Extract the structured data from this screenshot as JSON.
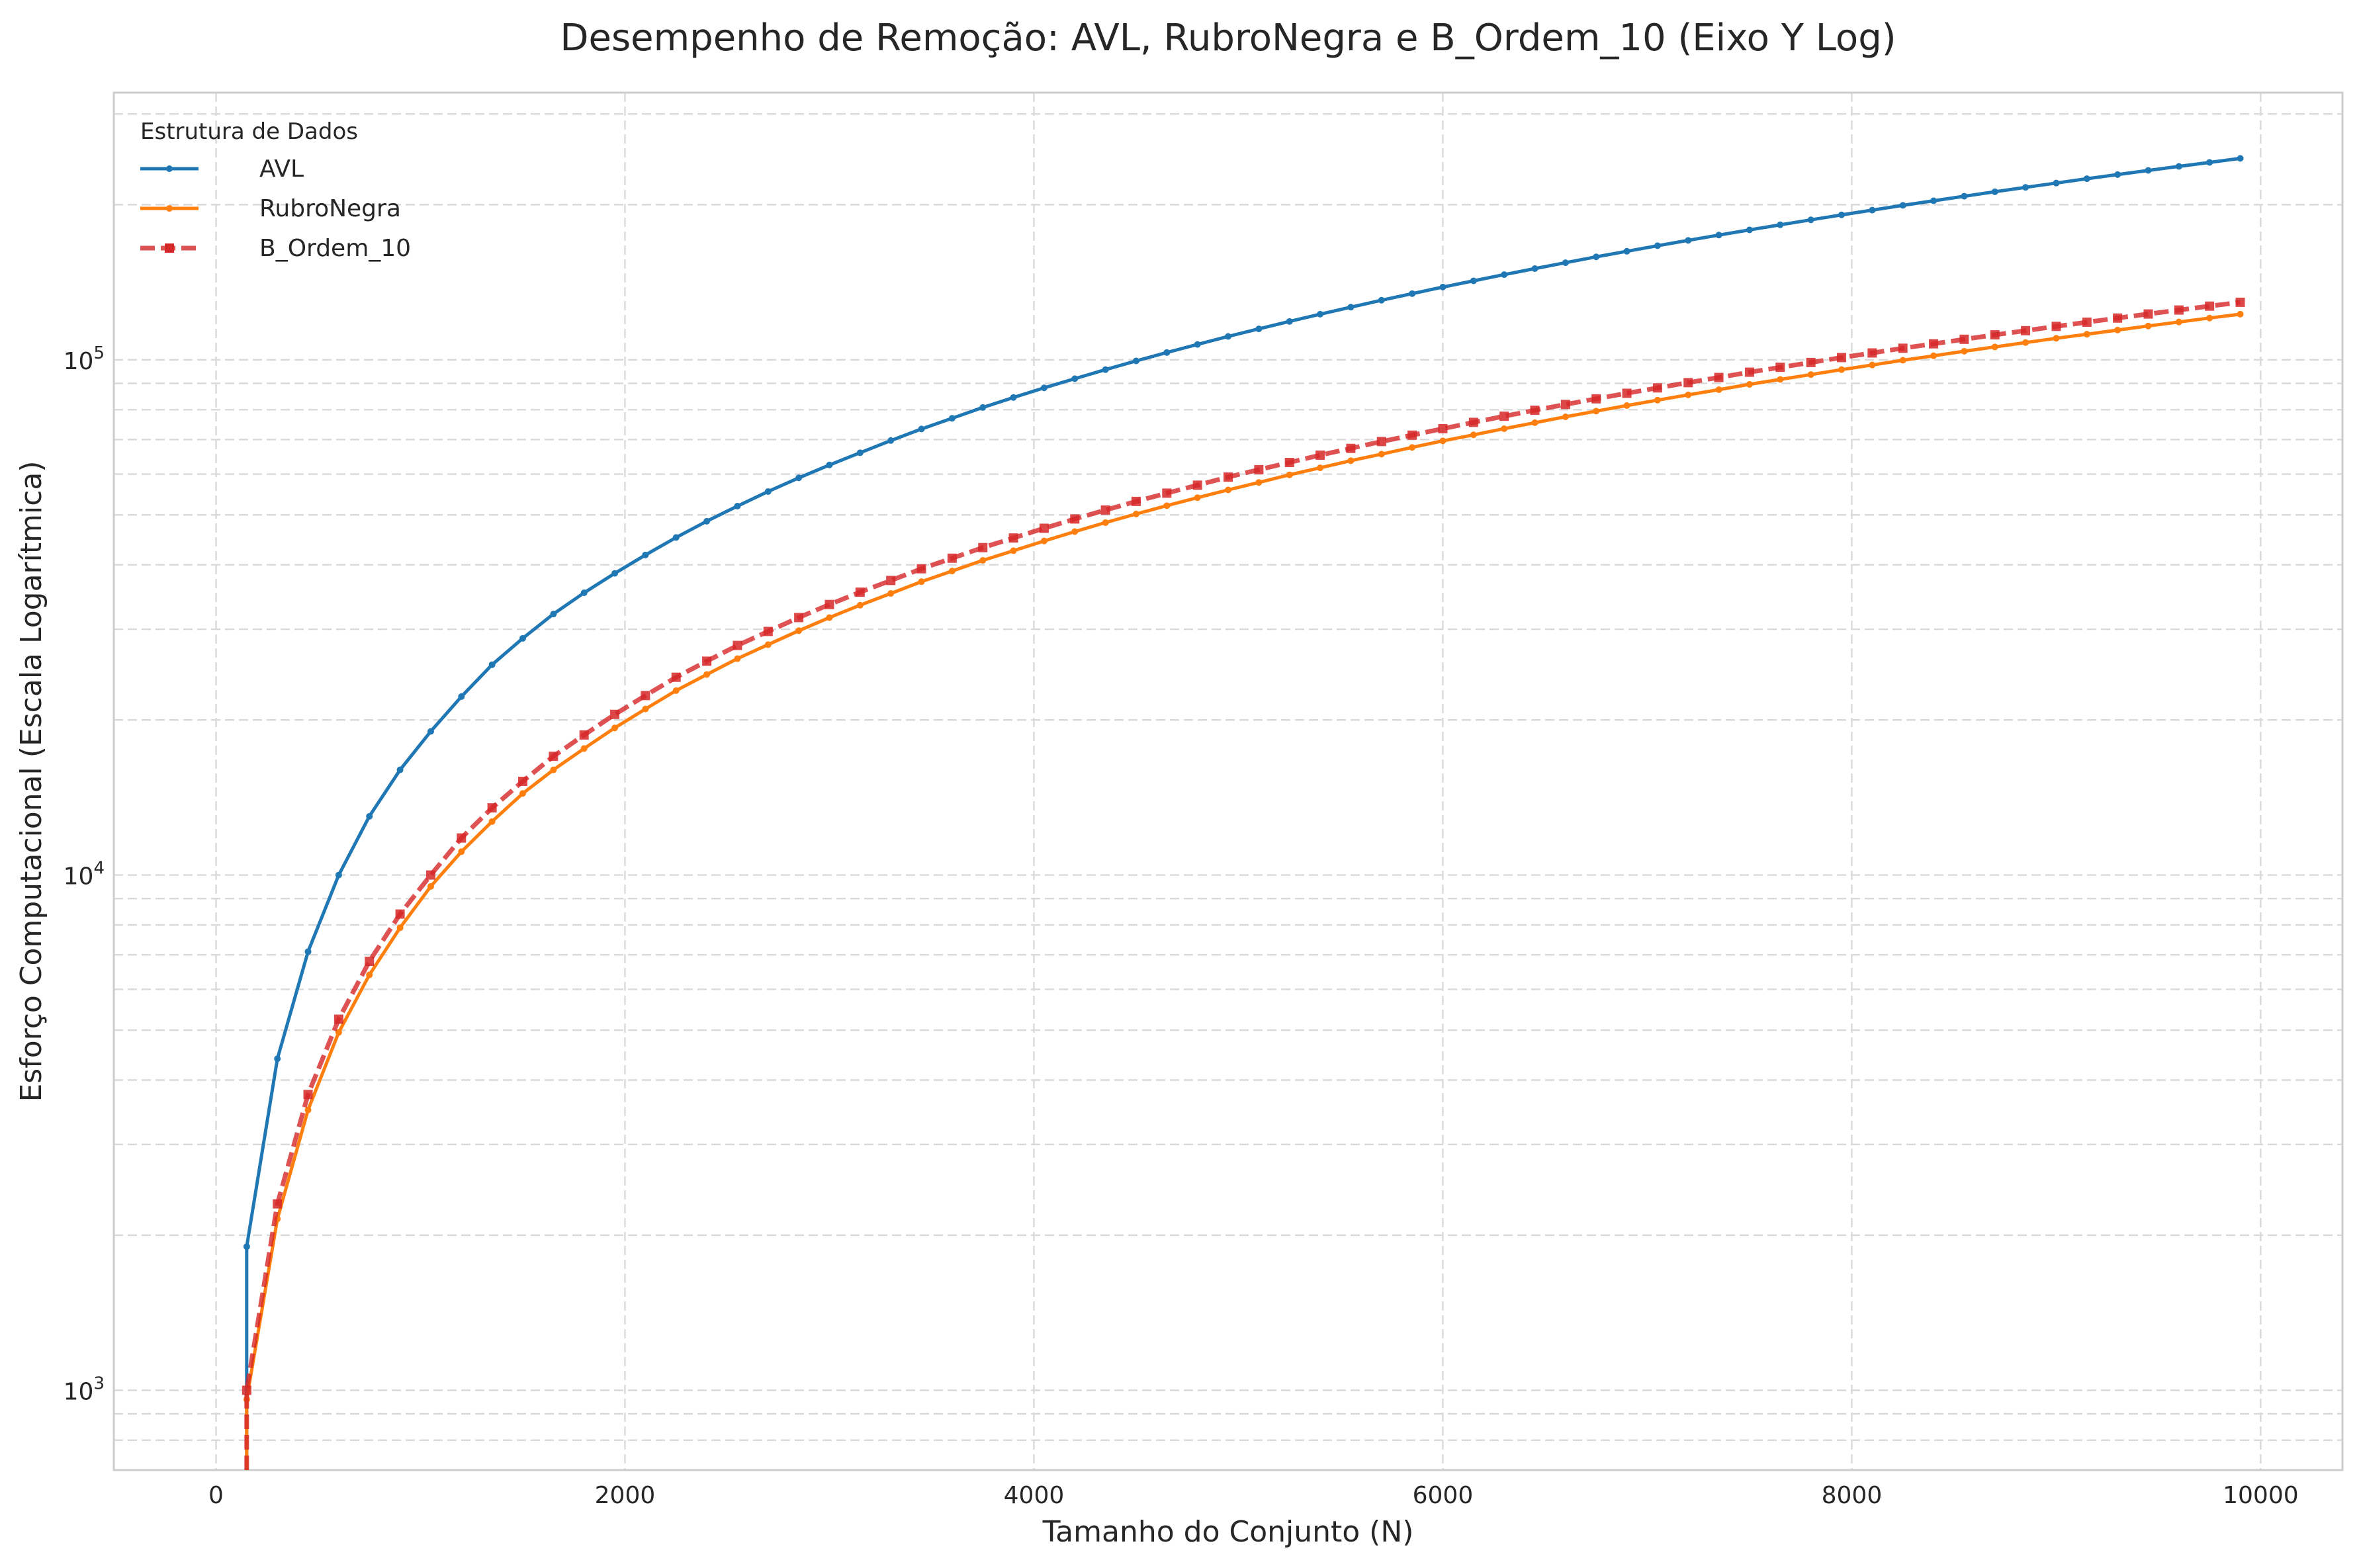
{
  "chart_data": {
    "type": "line",
    "title": "Desempenho de Remoção: AVL, RubroNegra e B_Ordem_10 (Eixo Y Log)",
    "xlabel": "Tamanho do Conjunto (N)",
    "ylabel": "Esforço Computacional (Escala Logarítmica)",
    "xlim": [
      -500,
      10400
    ],
    "ylim": [
      700,
      330000
    ],
    "yscale": "log",
    "grid": true,
    "x_ticks": [
      0,
      2000,
      4000,
      6000,
      8000,
      10000
    ],
    "x_tick_labels": [
      "0",
      "2000",
      "4000",
      "6000",
      "8000",
      "10000"
    ],
    "y_ticks": [
      {
        "value": 1000,
        "base": "10",
        "exp": "3"
      },
      {
        "value": 10000,
        "base": "10",
        "exp": "4"
      },
      {
        "value": 100000,
        "base": "10",
        "exp": "5"
      }
    ],
    "legend": {
      "title": "Estrutura de Dados",
      "position": "upper-left"
    },
    "series": [
      {
        "name": "AVL",
        "color": "#1f77b4",
        "style": "solid",
        "marker": "circle",
        "x": [
          150,
          150,
          300,
          450,
          600,
          750,
          900,
          1050,
          1200,
          1350,
          1500,
          1650,
          1800,
          1950,
          2100,
          2250,
          2400,
          2550,
          2700,
          2850,
          3000,
          3150,
          3300,
          3450,
          3600,
          3750,
          3900,
          4050,
          4200,
          4350,
          4500,
          4650,
          4800,
          4950,
          5100,
          5250,
          5400,
          5550,
          5700,
          5850,
          6000,
          6150,
          6300,
          6450,
          6600,
          6750,
          6900,
          7050,
          7200,
          7350,
          7500,
          7650,
          7800,
          7950,
          8100,
          8250,
          8400,
          8550,
          8700,
          8850,
          9000,
          9150,
          9300,
          9450,
          9600,
          9750,
          9900
        ],
        "y": [
          700,
          1900,
          4400,
          7100,
          10000,
          13000,
          16000,
          19000,
          22200,
          25600,
          28800,
          32100,
          35300,
          38500,
          41800,
          45200,
          48600,
          52000,
          55500,
          59000,
          62500,
          66000,
          69700,
          73400,
          77000,
          80800,
          84500,
          88200,
          91900,
          95700,
          99500,
          103300,
          107100,
          111000,
          114800,
          118700,
          122600,
          126500,
          130500,
          134400,
          138400,
          142300,
          146300,
          150300,
          154300,
          158400,
          162400,
          166500,
          170500,
          174600,
          178700,
          182800,
          186900,
          191100,
          195200,
          199400,
          203500,
          207700,
          211900,
          216100,
          220300,
          224600,
          228800,
          233100,
          237300,
          241600,
          246000
        ]
      },
      {
        "name": "RubroNegra",
        "color": "#ff7f0e",
        "style": "solid",
        "marker": "circle",
        "x": [
          150,
          150,
          300,
          450,
          600,
          750,
          900,
          1050,
          1200,
          1350,
          1500,
          1650,
          1800,
          1950,
          2100,
          2250,
          2400,
          2550,
          2700,
          2850,
          3000,
          3150,
          3300,
          3450,
          3600,
          3750,
          3900,
          4050,
          4200,
          4350,
          4500,
          4650,
          4800,
          4950,
          5100,
          5250,
          5400,
          5550,
          5700,
          5850,
          6000,
          6150,
          6300,
          6450,
          6600,
          6750,
          6900,
          7050,
          7200,
          7350,
          7500,
          7650,
          7800,
          7950,
          8100,
          8250,
          8400,
          8550,
          8700,
          8850,
          9000,
          9150,
          9300,
          9450,
          9600,
          9750,
          9900
        ],
        "y": [
          700,
          960,
          2150,
          3500,
          4950,
          6400,
          7900,
          9500,
          11100,
          12700,
          14400,
          16000,
          17600,
          19300,
          21000,
          22800,
          24500,
          26300,
          28000,
          29800,
          31600,
          33400,
          35200,
          37100,
          38900,
          40800,
          42600,
          44500,
          46400,
          48300,
          50200,
          52100,
          54000,
          55900,
          57800,
          59800,
          61700,
          63700,
          65600,
          67600,
          69600,
          71500,
          73500,
          75500,
          77500,
          79500,
          81500,
          83500,
          85500,
          87500,
          89600,
          91600,
          93600,
          95700,
          97700,
          99800,
          101800,
          103900,
          105900,
          108000,
          110100,
          112100,
          114200,
          116300,
          118400,
          120500,
          122600
        ]
      },
      {
        "name": "B_Ordem_10",
        "color": "#d62728",
        "style": "dashed",
        "marker": "square",
        "x": [
          150,
          150,
          300,
          450,
          600,
          750,
          900,
          1050,
          1200,
          1350,
          1500,
          1650,
          1800,
          1950,
          2100,
          2250,
          2400,
          2550,
          2700,
          2850,
          3000,
          3150,
          3300,
          3450,
          3600,
          3750,
          3900,
          4050,
          4200,
          4350,
          4500,
          4650,
          4800,
          4950,
          5100,
          5250,
          5400,
          5550,
          5700,
          5850,
          6000,
          6150,
          6300,
          6450,
          6600,
          6750,
          6900,
          7050,
          7200,
          7350,
          7500,
          7650,
          7800,
          7950,
          8100,
          8250,
          8400,
          8550,
          8700,
          8850,
          9000,
          9150,
          9300,
          9450,
          9600,
          9750,
          9900
        ],
        "y": [
          700,
          1000,
          2300,
          3750,
          5250,
          6800,
          8400,
          10000,
          11800,
          13500,
          15200,
          17000,
          18700,
          20500,
          22300,
          24200,
          26000,
          27900,
          29700,
          31600,
          33500,
          35400,
          37300,
          39300,
          41200,
          43200,
          45100,
          47100,
          49100,
          51100,
          53100,
          55100,
          57100,
          59200,
          61200,
          63200,
          65300,
          67300,
          69400,
          71400,
          73500,
          75600,
          77700,
          79800,
          81900,
          84000,
          86100,
          88200,
          90300,
          92400,
          94600,
          96700,
          98800,
          101000,
          103100,
          105300,
          107400,
          109600,
          111800,
          113900,
          116100,
          118300,
          120500,
          122700,
          124900,
          127100,
          129300
        ]
      }
    ]
  }
}
